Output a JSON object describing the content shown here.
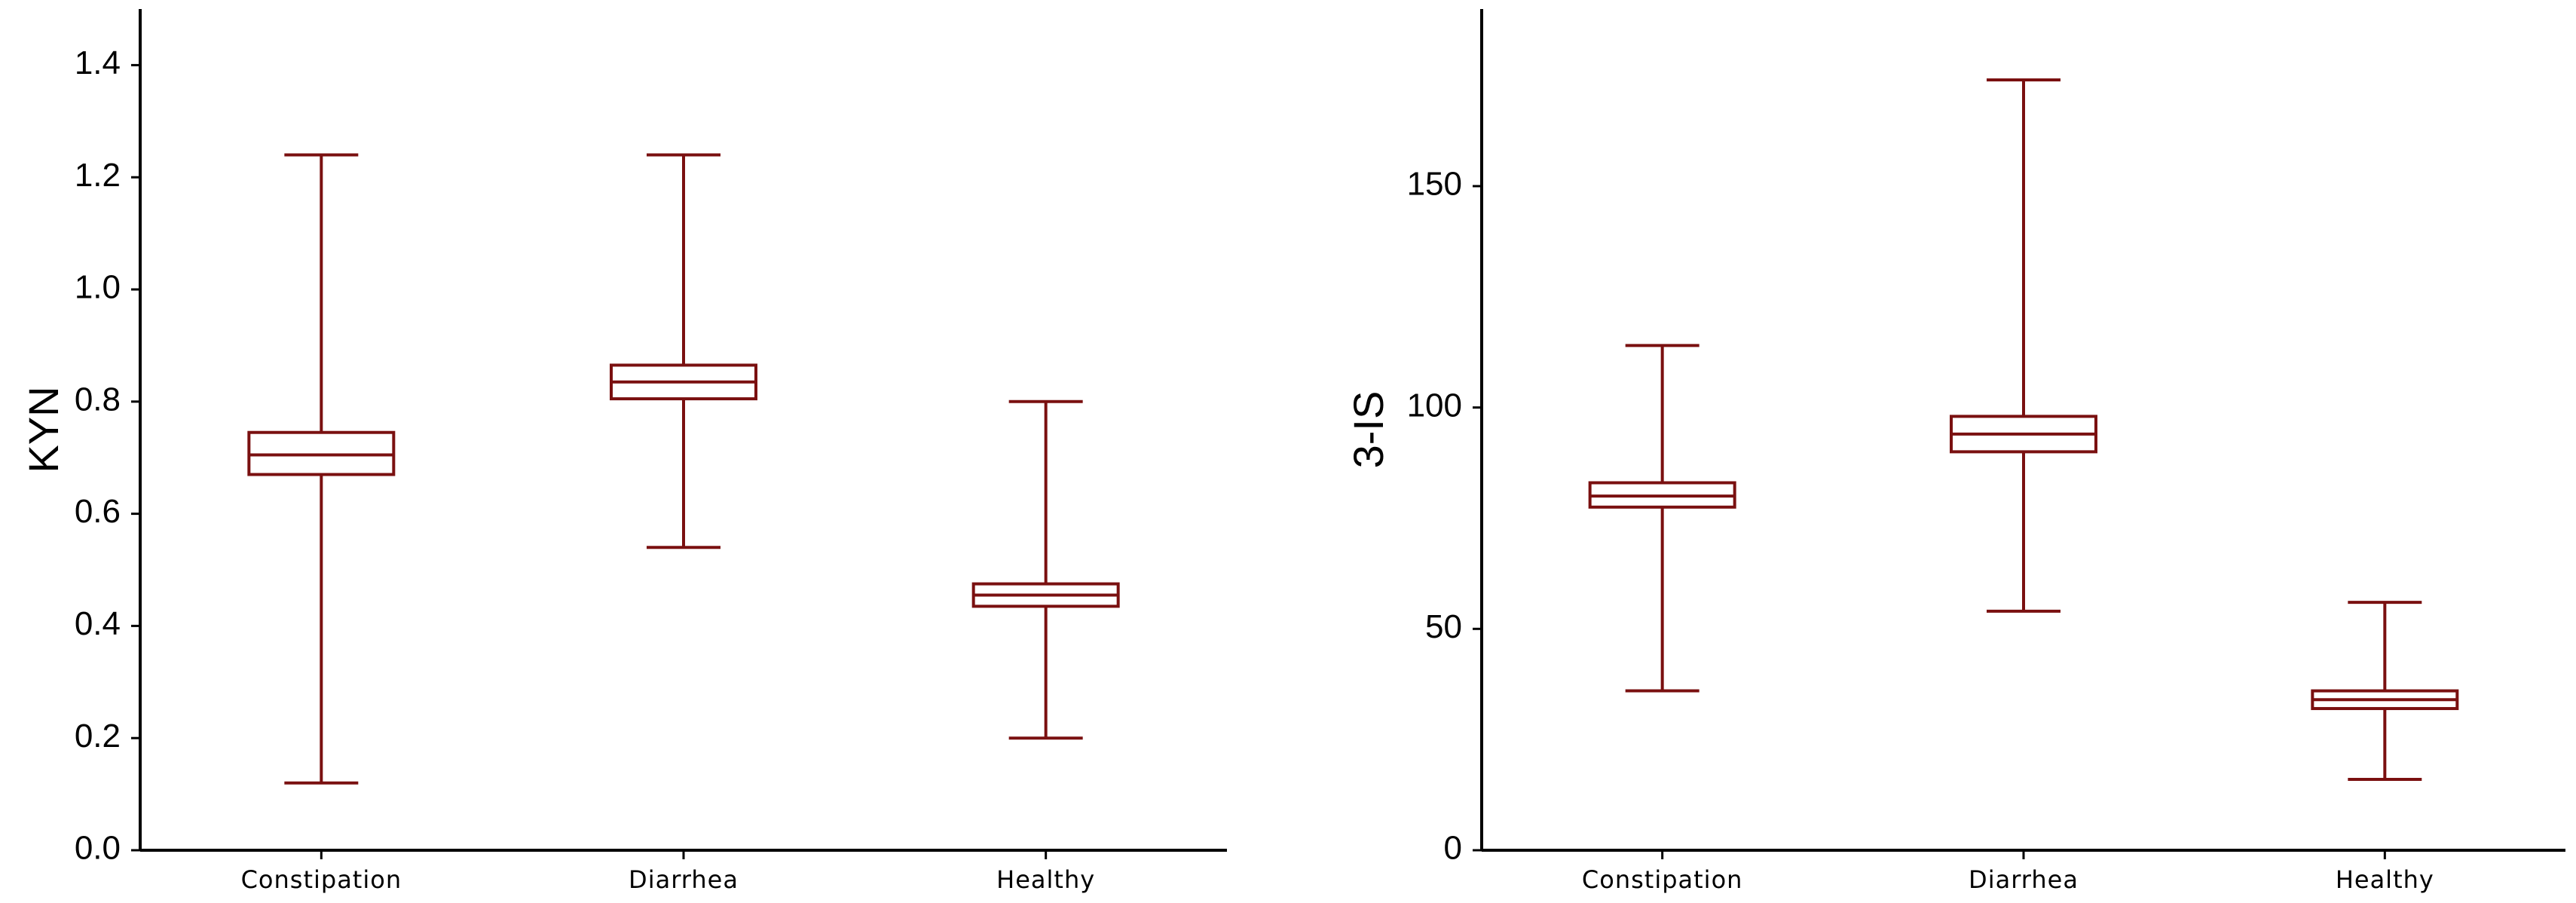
{
  "chart_data": [
    {
      "type": "box",
      "ylabel": "KYN",
      "xlabel": "",
      "title": "",
      "categories": [
        "Constipation",
        "Diarrhea",
        "Healthy"
      ],
      "ylim": [
        0,
        1.5
      ],
      "yticks": [
        0.0,
        0.2,
        0.4,
        0.6,
        0.8,
        1.0,
        1.2,
        1.4
      ],
      "ytick_labels": [
        "0.0",
        "0.2",
        "0.4",
        "0.6",
        "0.8",
        "1.0",
        "1.2",
        "1.4"
      ],
      "grid": false,
      "color": "#7a1010",
      "boxes": [
        {
          "category": "Constipation",
          "whisker_low": 0.12,
          "box_low": 0.67,
          "median": 0.705,
          "box_high": 0.745,
          "whisker_high": 1.24
        },
        {
          "category": "Diarrhea",
          "whisker_low": 0.54,
          "box_low": 0.805,
          "median": 0.835,
          "box_high": 0.865,
          "whisker_high": 1.24
        },
        {
          "category": "Healthy",
          "whisker_low": 0.2,
          "box_low": 0.435,
          "median": 0.455,
          "box_high": 0.475,
          "whisker_high": 0.8
        }
      ]
    },
    {
      "type": "box",
      "ylabel": "3-IS",
      "xlabel": "",
      "title": "",
      "categories": [
        "Constipation",
        "Diarrhea",
        "Healthy"
      ],
      "ylim": [
        0,
        190
      ],
      "yticks": [
        0,
        50,
        100,
        150
      ],
      "ytick_labels": [
        "0",
        "50",
        "100",
        "150"
      ],
      "grid": false,
      "color": "#7a1010",
      "boxes": [
        {
          "category": "Constipation",
          "whisker_low": 36,
          "box_low": 77.5,
          "median": 80,
          "box_high": 83,
          "whisker_high": 114
        },
        {
          "category": "Diarrhea",
          "whisker_low": 54,
          "box_low": 90,
          "median": 94,
          "box_high": 98,
          "whisker_high": 174
        },
        {
          "category": "Healthy",
          "whisker_low": 16,
          "box_low": 32,
          "median": 34,
          "box_high": 36,
          "whisker_high": 56
        }
      ]
    }
  ]
}
